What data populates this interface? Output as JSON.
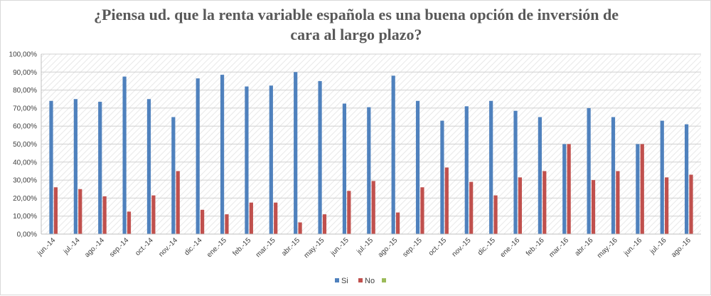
{
  "chart_data": {
    "type": "bar",
    "title_lines": [
      "¿Piensa ud. que la renta variable española es una buena opción de inversión de",
      "cara al largo plazo?"
    ],
    "xlabel": "",
    "ylabel": "",
    "ylim": [
      0,
      100
    ],
    "y_ticks": [
      "0,00%",
      "10,00%",
      "20,00%",
      "30,00%",
      "40,00%",
      "50,00%",
      "60,00%",
      "70,00%",
      "80,00%",
      "90,00%",
      "100,00%"
    ],
    "grid": true,
    "legend_position": "bottom",
    "categories": [
      "jun.-14",
      "jul.-14",
      "ago.-14",
      "sep.-14",
      "oct.-14",
      "nov.-14",
      "dic.-14",
      "ene.-15",
      "feb.-15",
      "mar.-15",
      "abr.-15",
      "may.-15",
      "jun.-15",
      "jul.-15",
      "ago.-15",
      "sep.-15",
      "oct.-15",
      "nov.-15",
      "dic.-15",
      "ene.-16",
      "feb.-16",
      "mar.-16",
      "abr.-16",
      "may.-16",
      "jun.-16",
      "jul.-16",
      "ago.-16"
    ],
    "series": [
      {
        "name": "Si",
        "color": "#4f81bd",
        "values": [
          74,
          75,
          73.5,
          87.5,
          75,
          65,
          86.5,
          88.5,
          82,
          82.5,
          90,
          85,
          72.5,
          70.5,
          88,
          74,
          63,
          71,
          74,
          68.5,
          65,
          50,
          70,
          65,
          50,
          63,
          61
        ]
      },
      {
        "name": "No",
        "color": "#c0504d",
        "values": [
          26,
          25,
          21,
          12.5,
          21.5,
          35,
          13.5,
          11,
          17.5,
          17.5,
          6.5,
          11,
          24,
          29.5,
          12,
          26,
          37,
          29,
          21.5,
          31.5,
          35,
          50,
          30,
          35,
          50,
          31.5,
          33
        ]
      },
      {
        "name": "",
        "color": "#9bbb59",
        "values": [
          0,
          0,
          0,
          0,
          0,
          0,
          0,
          0,
          0,
          0,
          0,
          0,
          0,
          0,
          0,
          0,
          0,
          0,
          0,
          0,
          0,
          0,
          0,
          0,
          0,
          0,
          0
        ]
      }
    ]
  }
}
